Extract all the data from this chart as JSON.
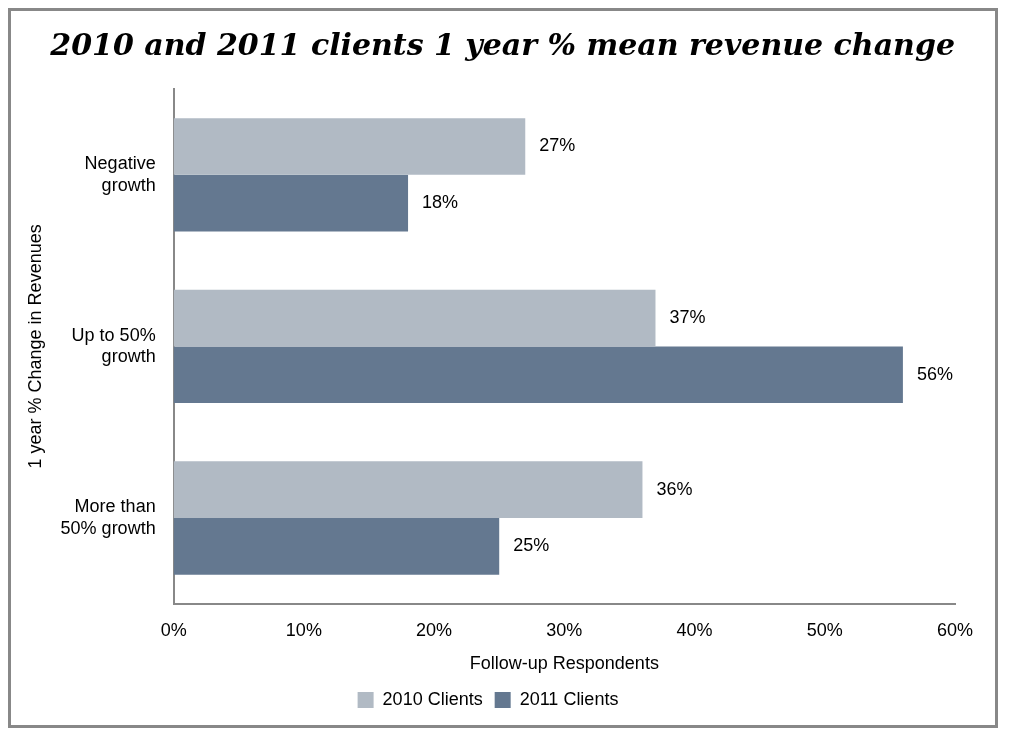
{
  "chart_data": {
    "type": "bar",
    "orientation": "horizontal",
    "title": "2010 and 2011 clients 1 year % mean revenue change",
    "xlabel": "Follow-up Respondents",
    "ylabel": "1 year % Change in Revenues",
    "categories": [
      "Negative growth",
      "Up to 50% growth",
      "More than 50% growth"
    ],
    "series": [
      {
        "name": "2010 Clients",
        "color": "#b1bac4",
        "values": [
          27,
          37,
          36
        ],
        "value_labels": [
          "27%",
          "37%",
          "36%"
        ]
      },
      {
        "name": "2011 Clients",
        "color": "#647890",
        "values": [
          18,
          56,
          25
        ],
        "value_labels": [
          "18%",
          "56%",
          "25%"
        ]
      }
    ],
    "xlim": [
      0,
      60
    ],
    "xticks": [
      {
        "value": 0,
        "label": "0%"
      },
      {
        "value": 10,
        "label": "10%"
      },
      {
        "value": 20,
        "label": "20%"
      },
      {
        "value": 30,
        "label": "30%"
      },
      {
        "value": 40,
        "label": "40%"
      },
      {
        "value": 50,
        "label": "50%"
      },
      {
        "value": 60,
        "label": "60%"
      }
    ],
    "grid": false,
    "legend": "bottom"
  }
}
